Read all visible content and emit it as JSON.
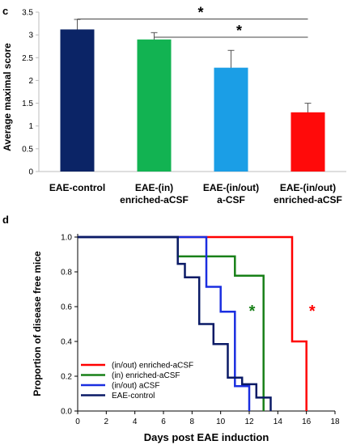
{
  "panels": {
    "c": {
      "label": "c"
    },
    "d": {
      "label": "d"
    }
  },
  "chart_data": [
    {
      "type": "bar",
      "panel": "c",
      "title": "",
      "xlabel": "",
      "ylabel": "Average maximal score",
      "ylim": [
        0,
        3.5
      ],
      "yticks": [
        "0",
        "0.5",
        "1",
        "1.5",
        "2",
        "2.5",
        "3",
        "3.5"
      ],
      "categories": [
        [
          "EAE-control"
        ],
        [
          "EAE-(in)",
          "enriched-aCSF"
        ],
        [
          "EAE-(in/out)",
          "a-CSF"
        ],
        [
          "EAE-(in/out)",
          "enriched-aCSF"
        ]
      ],
      "values": [
        3.12,
        2.9,
        2.28,
        1.3
      ],
      "errors": [
        0.22,
        0.15,
        0.38,
        0.2
      ],
      "bar_colors": [
        "#0b2466",
        "#12b352",
        "#1b9ee6",
        "#ff0a0a"
      ],
      "grid": false,
      "significance": [
        {
          "from": 0,
          "to": 3,
          "y": 3.35,
          "label": "*"
        },
        {
          "from": 1,
          "to": 3,
          "y": 2.95,
          "label": "*"
        }
      ]
    },
    {
      "type": "line",
      "panel": "d",
      "title": "",
      "xlabel": "Days post EAE induction",
      "ylabel": "Proportion of disease free mice",
      "xlim": [
        0,
        18
      ],
      "ylim": [
        0,
        1
      ],
      "xticks": [
        "0",
        "2",
        "4",
        "6",
        "8",
        "10",
        "12",
        "14",
        "16",
        "18"
      ],
      "yticks": [
        "0.0",
        "0.2",
        "0.4",
        "0.6",
        "0.8",
        "1.0"
      ],
      "grid": false,
      "legend_position": "bottom-left",
      "series": [
        {
          "name": "(in/out) enriched-aCSF",
          "color": "#ff0000",
          "points": [
            [
              0,
              1
            ],
            [
              15,
              1
            ],
            [
              15,
              0.4
            ],
            [
              16,
              0.4
            ],
            [
              16,
              0
            ]
          ]
        },
        {
          "name": "(in) enriched-aCSF",
          "color": "#188018",
          "points": [
            [
              0,
              1
            ],
            [
              7,
              1
            ],
            [
              7,
              0.889
            ],
            [
              11,
              0.889
            ],
            [
              11,
              0.778
            ],
            [
              13,
              0.778
            ],
            [
              13,
              0
            ]
          ]
        },
        {
          "name": "(in/out) aCSF",
          "color": "#1a2ee0",
          "points": [
            [
              0,
              1
            ],
            [
              9,
              1
            ],
            [
              9,
              0.714
            ],
            [
              10,
              0.714
            ],
            [
              10,
              0.571
            ],
            [
              11,
              0.571
            ],
            [
              11,
              0.143
            ],
            [
              12,
              0.143
            ],
            [
              12,
              0
            ]
          ]
        },
        {
          "name": "EAE-control",
          "color": "#0a1a66",
          "points": [
            [
              0,
              1
            ],
            [
              7,
              1
            ],
            [
              7,
              0.846
            ],
            [
              7.5,
              0.846
            ],
            [
              7.5,
              0.769
            ],
            [
              8.5,
              0.769
            ],
            [
              8.5,
              0.5
            ],
            [
              9.5,
              0.5
            ],
            [
              9.5,
              0.385
            ],
            [
              10.5,
              0.385
            ],
            [
              10.5,
              0.192
            ],
            [
              11.5,
              0.192
            ],
            [
              11.5,
              0.154
            ],
            [
              12.5,
              0.154
            ],
            [
              12.5,
              0.077
            ],
            [
              13.5,
              0.077
            ],
            [
              13.5,
              0
            ]
          ]
        }
      ],
      "annotations": [
        {
          "x": 12.2,
          "y": 0.6,
          "label": "*",
          "color": "#188018"
        },
        {
          "x": 16.4,
          "y": 0.6,
          "label": "*",
          "color": "#ff0000"
        }
      ]
    }
  ]
}
